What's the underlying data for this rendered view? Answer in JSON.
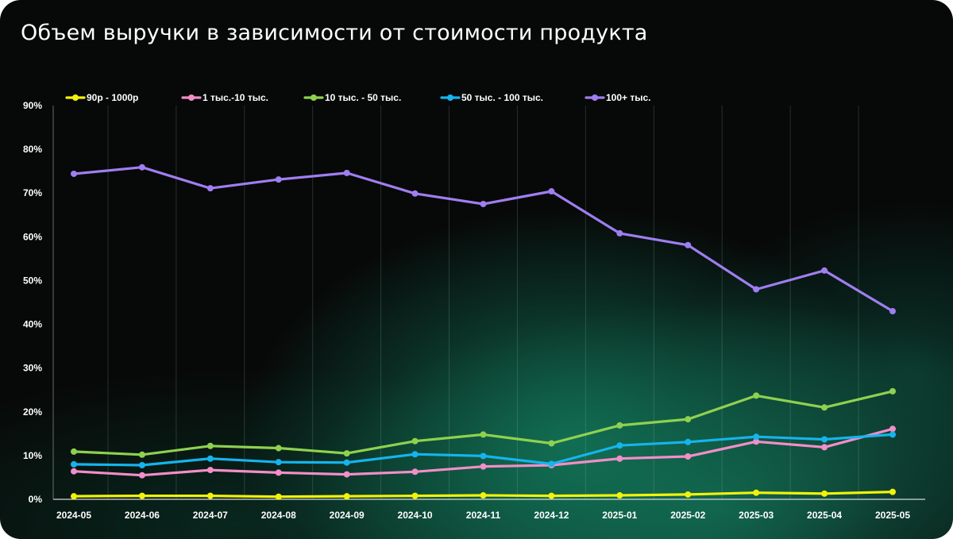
{
  "title": "Объем выручки в зависимости от стоимости продукта",
  "chart_data": {
    "type": "line",
    "title": "Объем выручки в зависимости от стоимости продукта",
    "xlabel": "",
    "ylabel": "",
    "categories": [
      "2024-05",
      "2024-06",
      "2024-07",
      "2024-08",
      "2024-09",
      "2024-10",
      "2024-11",
      "2024-12",
      "2025-01",
      "2025-02",
      "2025-03",
      "2025-04",
      "2025-05"
    ],
    "y_ticks": [
      "0%",
      "10%",
      "20%",
      "30%",
      "40%",
      "50%",
      "60%",
      "70%",
      "80%",
      "90%"
    ],
    "ylim": [
      0,
      90
    ],
    "grid": "vertical",
    "legend_position": "top-left",
    "series": [
      {
        "name": "90р - 1000р",
        "color": "#f2f20a",
        "values": [
          0.7,
          0.8,
          0.8,
          0.6,
          0.7,
          0.8,
          0.9,
          0.8,
          0.9,
          1.1,
          1.5,
          1.3,
          1.7
        ]
      },
      {
        "name": "1 тыс.-10 тыс.",
        "color": "#f28ec8",
        "values": [
          6.4,
          5.5,
          6.7,
          6.1,
          5.7,
          6.3,
          7.5,
          7.8,
          9.3,
          9.8,
          13.2,
          11.9,
          16.1
        ]
      },
      {
        "name": "10 тыс. - 50 тыс.",
        "color": "#8fd14f",
        "values": [
          10.9,
          10.2,
          12.2,
          11.7,
          10.5,
          13.3,
          14.8,
          12.8,
          16.9,
          18.3,
          23.7,
          21.0,
          24.7
        ]
      },
      {
        "name": "50 тыс. - 100 тыс.",
        "color": "#16b4ec",
        "values": [
          8.0,
          7.8,
          9.3,
          8.5,
          8.4,
          10.3,
          9.9,
          8.1,
          12.3,
          13.1,
          14.3,
          13.7,
          14.8
        ]
      },
      {
        "name": "100+ тыс.",
        "color": "#9f7ef0",
        "values": [
          74.4,
          75.9,
          71.1,
          73.1,
          74.6,
          69.9,
          67.5,
          70.4,
          60.8,
          58.1,
          48.0,
          52.3,
          43.0
        ]
      }
    ]
  }
}
